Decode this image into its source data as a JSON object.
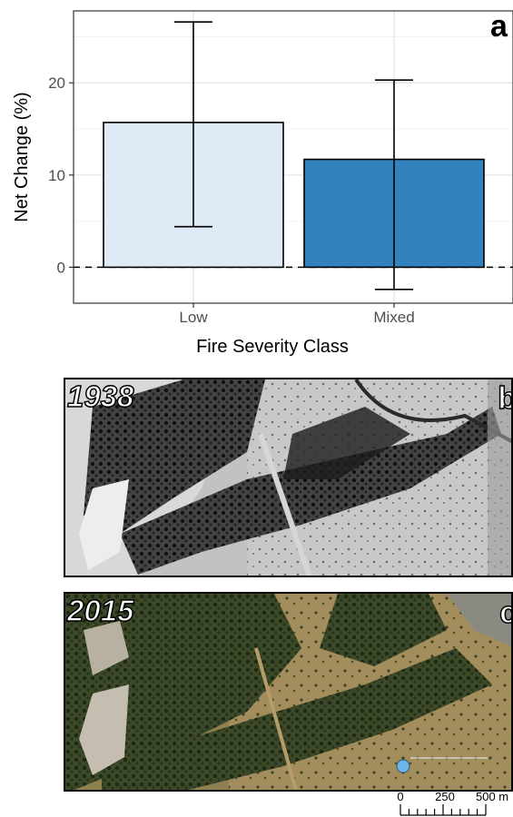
{
  "chart_data": {
    "type": "bar",
    "panel_label": "a",
    "categories": [
      "Low",
      "Mixed"
    ],
    "values": [
      15.7,
      11.7
    ],
    "error_low": [
      4.4,
      -2.4
    ],
    "error_high": [
      26.6,
      20.3
    ],
    "bar_colors": [
      "#deebf7",
      "#3182bd"
    ],
    "xlabel": "Fire Severity Class",
    "ylabel": "Net Change (%)",
    "ylim": [
      -3.9,
      27.8
    ],
    "yticks": [
      0,
      10,
      20
    ],
    "reference_line": 0,
    "grid": true
  },
  "photos": [
    {
      "year": "1938",
      "panel_label": "b",
      "style": "grayscale"
    },
    {
      "year": "2015",
      "panel_label": "c",
      "style": "color"
    }
  ],
  "scale_bar": {
    "labels": [
      "0",
      "250",
      "500 m"
    ]
  }
}
